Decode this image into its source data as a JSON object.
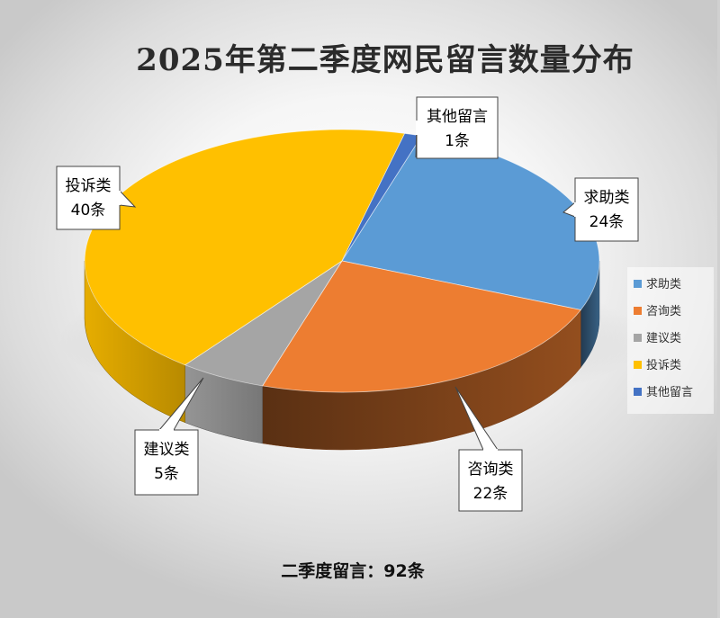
{
  "chart_data": {
    "type": "pie",
    "title": "2025年第二季度网民留言数量分布",
    "three_d": true,
    "slices": [
      {
        "name": "求助类",
        "value": 24,
        "label": "24条",
        "color": "#5B9BD5"
      },
      {
        "name": "咨询类",
        "value": 22,
        "label": "22条",
        "color": "#ED7D31"
      },
      {
        "name": "建议类",
        "value": 5,
        "label": "5条",
        "color": "#A5A5A5"
      },
      {
        "name": "投诉类",
        "value": 40,
        "label": "40条",
        "color": "#FFC000"
      },
      {
        "name": "其他留言",
        "value": 1,
        "label": "1条",
        "color": "#4472C4"
      }
    ],
    "legend_position": "right",
    "summary": "二季度留言：92条"
  }
}
